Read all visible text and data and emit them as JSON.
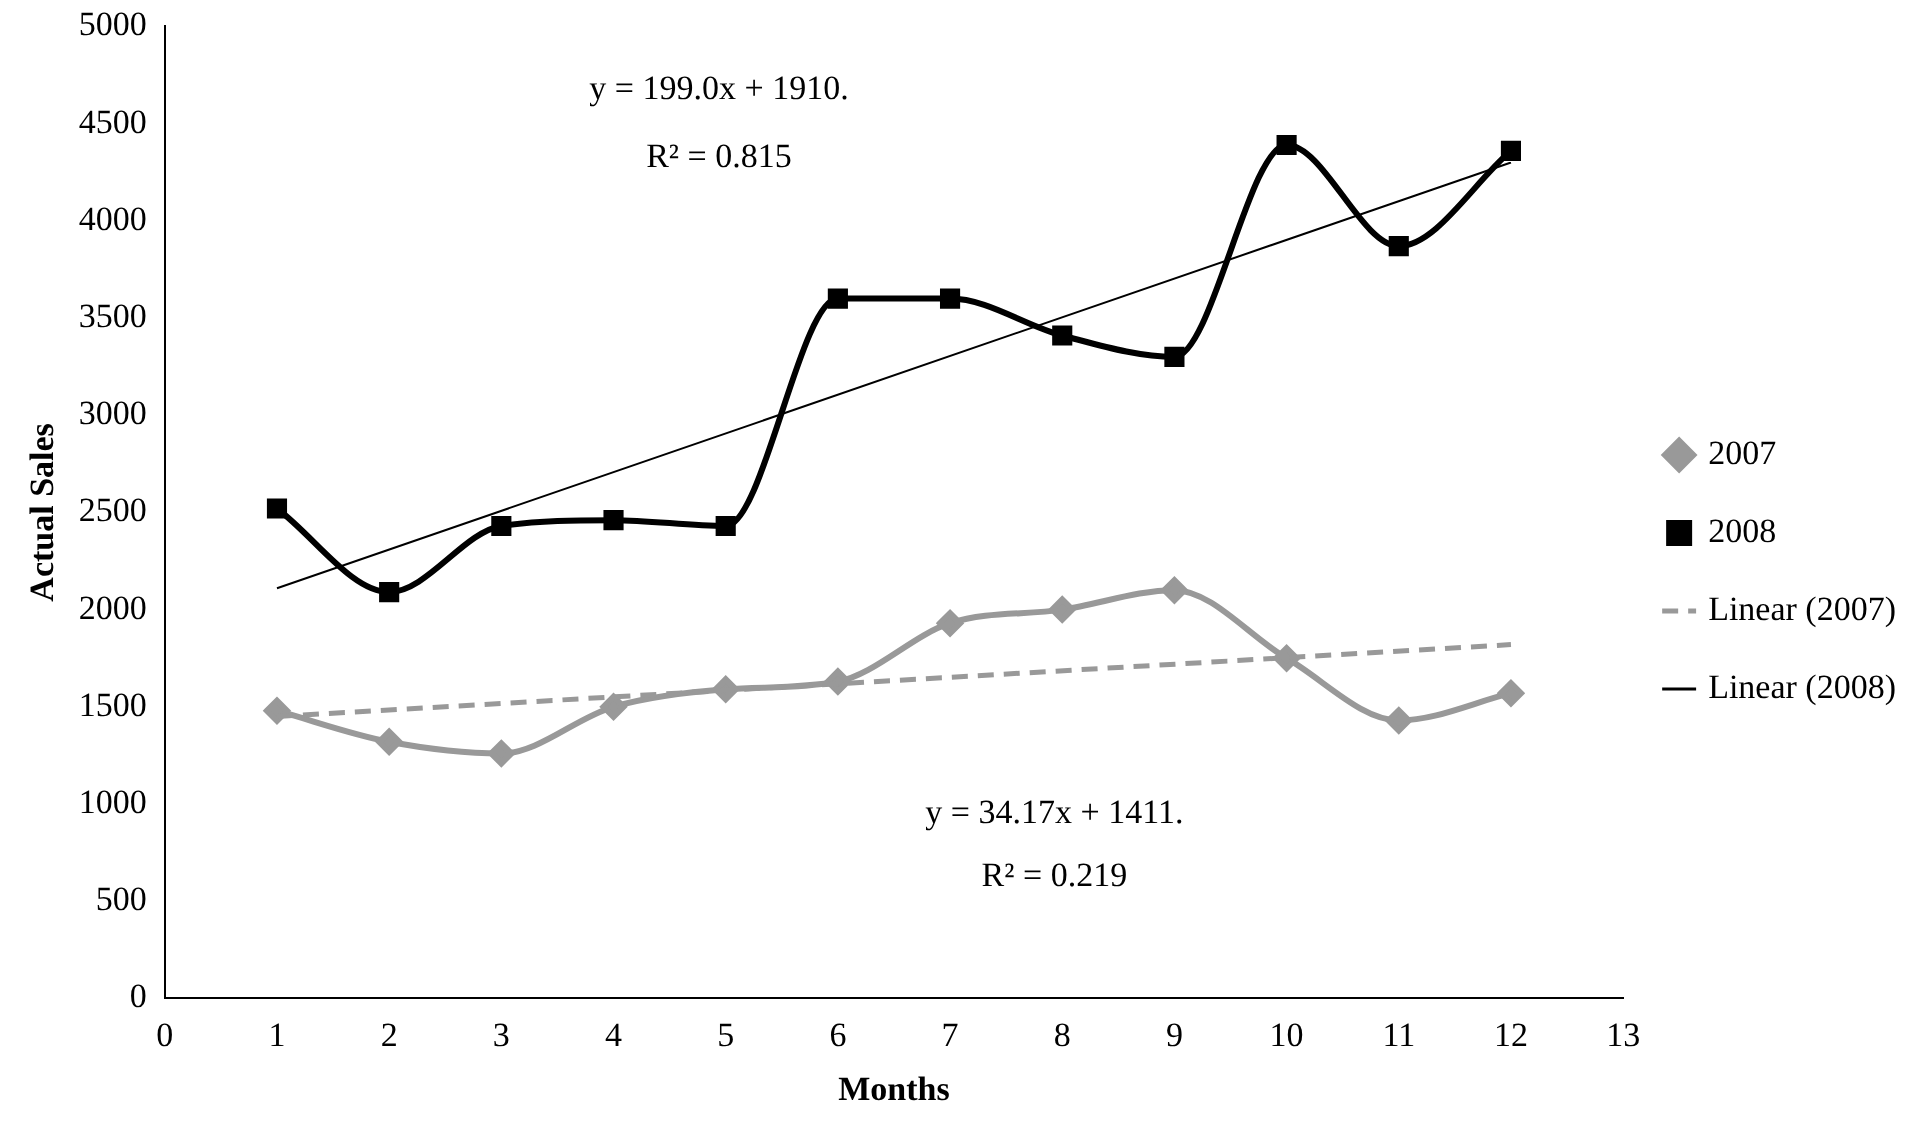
{
  "chart_data": {
    "type": "line",
    "xlabel": "Months",
    "ylabel": "Actual Sales",
    "xlim": [
      0,
      13
    ],
    "xticks": [
      0,
      1,
      2,
      3,
      4,
      5,
      6,
      7,
      8,
      9,
      10,
      11,
      12,
      13
    ],
    "ylim": [
      0,
      5000
    ],
    "yticks": [
      0,
      500,
      1000,
      1500,
      2000,
      2500,
      3000,
      3500,
      4000,
      4500,
      5000
    ],
    "x": [
      1,
      2,
      3,
      4,
      5,
      6,
      7,
      8,
      9,
      10,
      11,
      12
    ],
    "legend": "right",
    "series": [
      {
        "name": "2007",
        "color": "#999999",
        "marker": "diamond",
        "values": [
          1480,
          1320,
          1260,
          1500,
          1590,
          1630,
          1930,
          2000,
          2100,
          1750,
          1430,
          1570
        ]
      },
      {
        "name": "2008",
        "color": "#000000",
        "marker": "square",
        "values": [
          2520,
          2090,
          2430,
          2460,
          2430,
          3600,
          3600,
          3410,
          3300,
          4390,
          3870,
          4360
        ]
      },
      {
        "name": "Linear (2007)",
        "color": "#999999",
        "marker": "none",
        "line_style": "dashed",
        "values": [
          1450,
          null,
          null,
          null,
          null,
          null,
          null,
          null,
          null,
          null,
          null,
          1820
        ]
      },
      {
        "name": "Linear (2008)",
        "color": "#000000",
        "marker": "none",
        "line_style": "solid",
        "values": [
          2110,
          null,
          null,
          null,
          null,
          null,
          null,
          null,
          null,
          null,
          null,
          4300
        ]
      }
    ],
    "annotations": [
      "y = 199.0x + 1910.",
      "R² = 0.815",
      "y = 34.17x + 1411.",
      "R² = 0.219"
    ]
  }
}
